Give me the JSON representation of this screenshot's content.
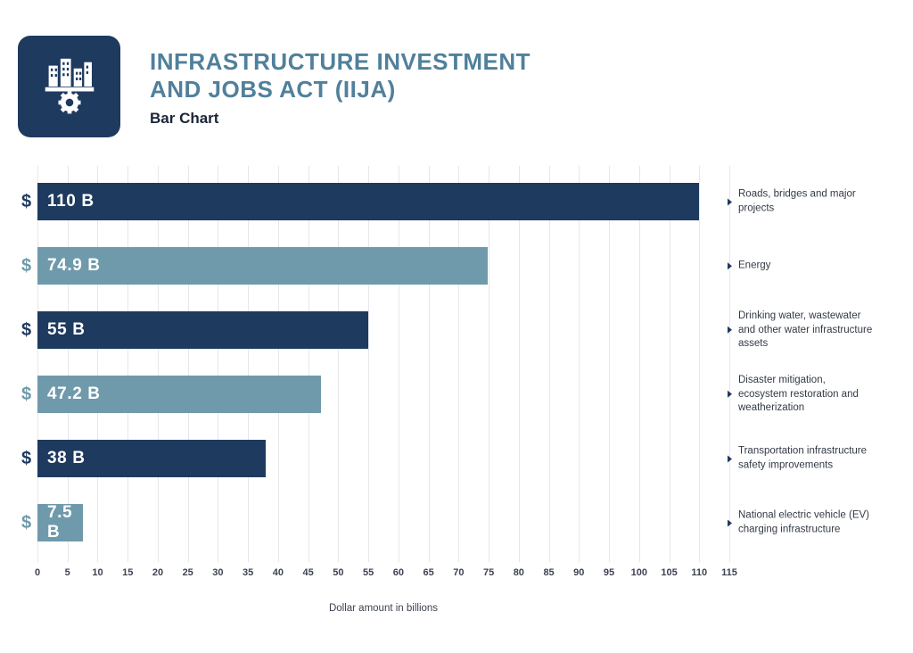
{
  "header": {
    "title_line1": "INFRASTRUCTURE INVESTMENT",
    "title_line2": "AND JOBS ACT (IIJA)",
    "subtitle": "Bar Chart",
    "logo_icon": "city-buildings-gear-icon"
  },
  "colors": {
    "navy": "#1e3a5f",
    "teal": "#6f9aab",
    "title_text": "#50809b",
    "grid": "#e5e7ea",
    "tick_text": "#3c4250"
  },
  "chart_data": {
    "type": "bar",
    "orientation": "horizontal",
    "title": "Infrastructure Investment and Jobs Act (IIJA)",
    "subtitle": "Bar Chart",
    "xlabel": "Dollar amount in billions",
    "ylabel": "",
    "xlim": [
      0,
      115
    ],
    "xtick_step": 5,
    "grid": true,
    "legend": false,
    "currency_prefix": "$",
    "categories": [
      "Roads, bridges and major projects",
      "Energy",
      "Drinking water, wastewater and other water infrastructure assets",
      "Disaster mitigation, ecosystem restoration and weatherization",
      "Transportation infrastructure safety improvements",
      "National electric vehicle (EV) charging infrastructure"
    ],
    "values": [
      110,
      74.9,
      55,
      47.2,
      38,
      7.5
    ],
    "value_labels": [
      "110 B",
      "74.9 B",
      "55 B",
      "47.2 B",
      "38 B",
      "7.5 B"
    ],
    "bar_color_keys": [
      "navy",
      "teal",
      "navy",
      "teal",
      "navy",
      "teal"
    ]
  }
}
